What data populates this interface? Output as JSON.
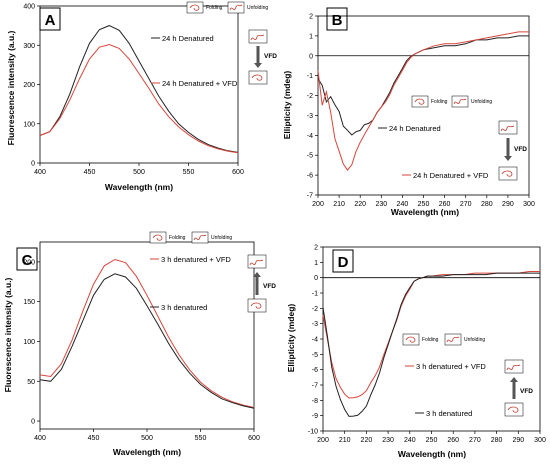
{
  "chart_data": [
    {
      "panel": "A",
      "type": "line",
      "xlabel": "Wavelength (nm)",
      "ylabel": "Fluorescence intensity (a.u.)",
      "xlim": [
        400,
        600
      ],
      "ylim": [
        0,
        400
      ],
      "xticks": [
        400,
        450,
        500,
        550,
        600
      ],
      "yticks": [
        0,
        100,
        200,
        300,
        400
      ],
      "series": [
        {
          "name": "24 h Denatured",
          "color": "#222222",
          "x": [
            400,
            410,
            420,
            430,
            440,
            450,
            460,
            470,
            480,
            490,
            500,
            510,
            520,
            530,
            540,
            550,
            560,
            570,
            580,
            590,
            600
          ],
          "values": [
            70,
            80,
            118,
            175,
            245,
            305,
            340,
            350,
            338,
            305,
            260,
            215,
            170,
            132,
            100,
            78,
            60,
            47,
            38,
            31,
            27
          ]
        },
        {
          "name": "24 h Denatured + VFD",
          "color": "#d9453a",
          "x": [
            400,
            410,
            420,
            430,
            440,
            450,
            460,
            470,
            480,
            490,
            500,
            510,
            520,
            530,
            540,
            550,
            560,
            570,
            580,
            590,
            600
          ],
          "values": [
            70,
            80,
            113,
            160,
            215,
            265,
            295,
            302,
            292,
            265,
            228,
            190,
            150,
            118,
            92,
            72,
            56,
            44,
            36,
            30,
            26
          ]
        }
      ],
      "icons": {
        "folding_label": "Folding",
        "unfolding_label": "Unfolding",
        "vfd_label": "VFD"
      }
    },
    {
      "panel": "B",
      "type": "line",
      "xlabel": "Wavelength (nm)",
      "ylabel": "Ellipticity (mdeg)",
      "xlim": [
        200,
        300
      ],
      "ylim": [
        -7,
        2
      ],
      "xticks": [
        200,
        210,
        220,
        230,
        240,
        250,
        260,
        270,
        280,
        290,
        300
      ],
      "yticks": [
        -7,
        -6,
        -5,
        -4,
        -3,
        -2,
        -1,
        0,
        1,
        2
      ],
      "series": [
        {
          "name": "24 h Denatured",
          "color": "#222222",
          "x": [
            200,
            202,
            204,
            206,
            208,
            210,
            212,
            214,
            216,
            218,
            220,
            222,
            224,
            226,
            228,
            230,
            232,
            234,
            236,
            238,
            240,
            242,
            244,
            246,
            248,
            250,
            255,
            260,
            265,
            270,
            275,
            280,
            285,
            290,
            295,
            300
          ],
          "values": [
            -1.2,
            -1.5,
            -2.3,
            -2.0,
            -2.5,
            -2.8,
            -3.5,
            -3.8,
            -4.0,
            -3.8,
            -3.7,
            -3.5,
            -3.4,
            -3.2,
            -2.9,
            -2.6,
            -2.2,
            -1.8,
            -1.4,
            -1.0,
            -0.6,
            -0.3,
            -0.05,
            0.1,
            0.2,
            0.3,
            0.4,
            0.5,
            0.5,
            0.6,
            0.8,
            0.8,
            0.9,
            0.9,
            1.0,
            1.0
          ]
        },
        {
          "name": "24 h Denatured + VFD",
          "color": "#d9453a",
          "x": [
            200,
            202,
            204,
            206,
            208,
            210,
            212,
            214,
            216,
            218,
            220,
            222,
            224,
            226,
            228,
            230,
            232,
            234,
            236,
            238,
            240,
            242,
            244,
            246,
            248,
            250,
            255,
            260,
            265,
            270,
            275,
            280,
            285,
            290,
            295,
            300
          ],
          "values": [
            -0.8,
            -2.5,
            -1.8,
            -2.8,
            -4.2,
            -4.8,
            -5.4,
            -5.8,
            -5.5,
            -4.8,
            -4.3,
            -4.0,
            -3.6,
            -3.2,
            -2.9,
            -2.6,
            -2.3,
            -1.9,
            -1.5,
            -1.1,
            -0.7,
            -0.4,
            -0.1,
            0.1,
            0.2,
            0.3,
            0.5,
            0.6,
            0.6,
            0.7,
            0.8,
            0.9,
            1.0,
            1.1,
            1.2,
            1.2
          ]
        }
      ],
      "icons": {
        "folding_label": "Folding",
        "unfolding_label": "Unfolding",
        "vfd_label": "VFD"
      }
    },
    {
      "panel": "C",
      "type": "line",
      "xlabel": "Wavelength (nm)",
      "ylabel": "Fluorescence intensity (a.u.)",
      "xlim": [
        400,
        600
      ],
      "ylim": [
        -10,
        225
      ],
      "xticks": [
        400,
        450,
        500,
        550,
        600
      ],
      "yticks": [
        0,
        50,
        100,
        150,
        200
      ],
      "series": [
        {
          "name": "3 h denatured + VFD",
          "color": "#d9453a",
          "x": [
            400,
            410,
            420,
            430,
            440,
            450,
            460,
            470,
            480,
            490,
            500,
            510,
            520,
            530,
            540,
            550,
            560,
            570,
            580,
            590,
            600
          ],
          "values": [
            58,
            56,
            72,
            102,
            138,
            172,
            195,
            203,
            199,
            182,
            158,
            132,
            106,
            83,
            64,
            49,
            38,
            30,
            24,
            20,
            17
          ]
        },
        {
          "name": "3 h denatured",
          "color": "#222222",
          "x": [
            400,
            410,
            420,
            430,
            440,
            450,
            460,
            470,
            480,
            490,
            500,
            510,
            520,
            530,
            540,
            550,
            560,
            570,
            580,
            590,
            600
          ],
          "values": [
            52,
            50,
            65,
            94,
            126,
            158,
            178,
            185,
            181,
            167,
            145,
            122,
            98,
            77,
            60,
            46,
            36,
            28,
            23,
            19,
            16
          ]
        }
      ],
      "icons": {
        "folding_label": "Folding",
        "unfolding_label": "Unfolding",
        "vfd_label": "VFD"
      }
    },
    {
      "panel": "D",
      "type": "line",
      "xlabel": "Wavelength (nm)",
      "ylabel": "Ellipticity (mdeg)",
      "xlim": [
        200,
        300
      ],
      "ylim": [
        -10,
        2
      ],
      "xticks": [
        200,
        210,
        220,
        230,
        240,
        250,
        260,
        270,
        280,
        290,
        300
      ],
      "yticks": [
        -10,
        -9,
        -8,
        -7,
        -6,
        -5,
        -4,
        -3,
        -2,
        -1,
        0,
        1,
        2
      ],
      "series": [
        {
          "name": "3 h denatured + VFD",
          "color": "#d9453a",
          "x": [
            200,
            202,
            204,
            206,
            208,
            210,
            212,
            214,
            216,
            218,
            220,
            222,
            224,
            226,
            228,
            230,
            232,
            234,
            236,
            238,
            240,
            242,
            244,
            246,
            248,
            250,
            255,
            260,
            265,
            270,
            275,
            280,
            285,
            290,
            295,
            300
          ],
          "values": [
            -2.5,
            -4.0,
            -5.5,
            -6.5,
            -7.2,
            -7.6,
            -7.8,
            -7.9,
            -7.8,
            -7.6,
            -7.3,
            -6.9,
            -6.4,
            -5.8,
            -5.1,
            -4.3,
            -3.5,
            -2.7,
            -1.9,
            -1.2,
            -0.7,
            -0.3,
            -0.1,
            0.0,
            0.1,
            0.1,
            0.2,
            0.2,
            0.2,
            0.3,
            0.3,
            0.3,
            0.3,
            0.3,
            0.4,
            0.4
          ]
        },
        {
          "name": "3 h denatured",
          "color": "#222222",
          "x": [
            200,
            202,
            204,
            206,
            208,
            210,
            212,
            214,
            216,
            218,
            220,
            222,
            224,
            226,
            228,
            230,
            232,
            234,
            236,
            238,
            240,
            242,
            244,
            246,
            248,
            250,
            255,
            260,
            265,
            270,
            275,
            280,
            285,
            290,
            295,
            300
          ],
          "values": [
            -2.0,
            -3.8,
            -5.8,
            -7.0,
            -8.0,
            -8.6,
            -9.0,
            -9.1,
            -9.0,
            -8.7,
            -8.3,
            -7.7,
            -7.0,
            -6.2,
            -5.3,
            -4.4,
            -3.5,
            -2.6,
            -1.8,
            -1.1,
            -0.6,
            -0.3,
            -0.1,
            0.0,
            0.1,
            0.1,
            0.1,
            0.2,
            0.2,
            0.2,
            0.2,
            0.3,
            0.3,
            0.3,
            0.3,
            0.3
          ]
        }
      ],
      "icons": {
        "folding_label": "Folding",
        "unfolding_label": "Unfolding",
        "vfd_label": "VFD"
      }
    }
  ]
}
